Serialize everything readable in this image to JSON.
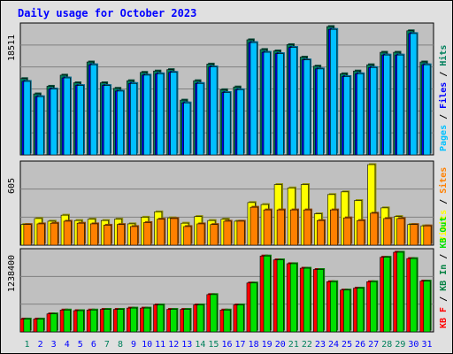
{
  "chart_data": {
    "type": "bar",
    "title": "Daily usage for October 2023",
    "days": [
      "1",
      "2",
      "3",
      "4",
      "5",
      "6",
      "7",
      "8",
      "9",
      "10",
      "11",
      "12",
      "13",
      "14",
      "15",
      "16",
      "17",
      "18",
      "19",
      "20",
      "21",
      "22",
      "23",
      "24",
      "25",
      "26",
      "27",
      "28",
      "29",
      "30",
      "31"
    ],
    "weekend_days": [
      "1",
      "7",
      "8",
      "14",
      "15",
      "21",
      "22",
      "28",
      "29"
    ],
    "panels": [
      {
        "id": "hits",
        "ymax_label": "18511",
        "ymax": 18511,
        "legend": [
          "Pages",
          "/",
          "Files",
          "/",
          "Hits"
        ],
        "series": [
          {
            "name": "Hits",
            "color": "#00805c",
            "values": [
              11000,
              8800,
              9900,
              11500,
              10400,
              13400,
              10400,
              9600,
              10700,
              11900,
              12100,
              12300,
              7900,
              10700,
              13100,
              9400,
              9800,
              16600,
              15200,
              15000,
              15900,
              14100,
              12800,
              18511,
              11700,
              12100,
              13000,
              14800,
              14800,
              17900,
              13400
            ]
          },
          {
            "name": "Files",
            "color": "#0000ff",
            "values": [
              10600,
              8400,
              9500,
              11100,
              10000,
              13000,
              10000,
              9200,
              10300,
              11500,
              11700,
              11900,
              7500,
              10300,
              12700,
              9000,
              9400,
              16200,
              14800,
              14600,
              15500,
              13700,
              12400,
              18100,
              11300,
              11700,
              12600,
              14400,
              14400,
              17500,
              13000
            ]
          },
          {
            "name": "Pages",
            "color": "#00c0ff",
            "values": [
              10600,
              8400,
              9500,
              11100,
              10000,
              13000,
              10000,
              9200,
              10300,
              11500,
              11700,
              11900,
              7500,
              10300,
              12700,
              9000,
              9400,
              16200,
              14800,
              14600,
              15500,
              13700,
              12400,
              18100,
              11300,
              11700,
              12600,
              14400,
              14400,
              17500,
              13000
            ]
          }
        ]
      },
      {
        "id": "visits",
        "ymax_label": "605",
        "ymax": 605,
        "legend": [
          "Visits",
          "/",
          "Sites"
        ],
        "series": [
          {
            "name": "Visits",
            "color": "#ffff00",
            "values": [
              155,
              200,
              180,
              225,
              185,
              195,
              185,
              195,
              160,
              210,
              250,
              205,
              165,
              215,
              185,
              195,
              180,
              320,
              305,
              455,
              430,
              455,
              235,
              380,
              400,
              335,
              605,
              280,
              215,
              155,
              145
            ]
          },
          {
            "name": "Sites",
            "color": "#ff8000",
            "values": [
              155,
              160,
              165,
              180,
              165,
              160,
              150,
              155,
              140,
              170,
              195,
              200,
              140,
              160,
              155,
              180,
              180,
              285,
              265,
              265,
              265,
              265,
              185,
              265,
              205,
              185,
              240,
              200,
              200,
              155,
              145
            ]
          }
        ]
      },
      {
        "id": "kbytes",
        "ymax_label": "1238400",
        "ymax": 1238400,
        "legend": [
          "KB F",
          "/",
          "KB In",
          "/",
          "KB Out"
        ],
        "series": [
          {
            "name": "KB F",
            "color": "#ff0000",
            "values": [
              200000,
              200000,
              280000,
              340000,
              330000,
              340000,
              350000,
              350000,
              370000,
              370000,
              420000,
              350000,
              350000,
              420000,
              580000,
              340000,
              420000,
              760000,
              1180000,
              1120000,
              1060000,
              990000,
              970000,
              780000,
              650000,
              680000,
              780000,
              1160000,
              1238400,
              1140000,
              790000
            ]
          },
          {
            "name": "KB In",
            "color": "#008040",
            "values": [
              0,
              0,
              0,
              0,
              0,
              0,
              0,
              0,
              0,
              0,
              0,
              0,
              0,
              0,
              0,
              0,
              0,
              0,
              0,
              0,
              0,
              0,
              0,
              0,
              0,
              0,
              0,
              0,
              0,
              0,
              0
            ]
          },
          {
            "name": "KB Out",
            "color": "#00e000",
            "values": [
              200000,
              200000,
              280000,
              340000,
              330000,
              340000,
              350000,
              350000,
              370000,
              370000,
              420000,
              350000,
              350000,
              420000,
              580000,
              340000,
              420000,
              760000,
              1180000,
              1120000,
              1060000,
              990000,
              970000,
              780000,
              650000,
              680000,
              780000,
              1160000,
              1238400,
              1140000,
              790000
            ]
          }
        ]
      }
    ],
    "colors": {
      "title": "#0000ff",
      "plot_background": "#c0c0c0",
      "frame_background": "#e0e0e0",
      "weekday_label": "#0000ff",
      "weekend_label": "#00805c",
      "axis_text": "#000000"
    },
    "grid": true
  }
}
